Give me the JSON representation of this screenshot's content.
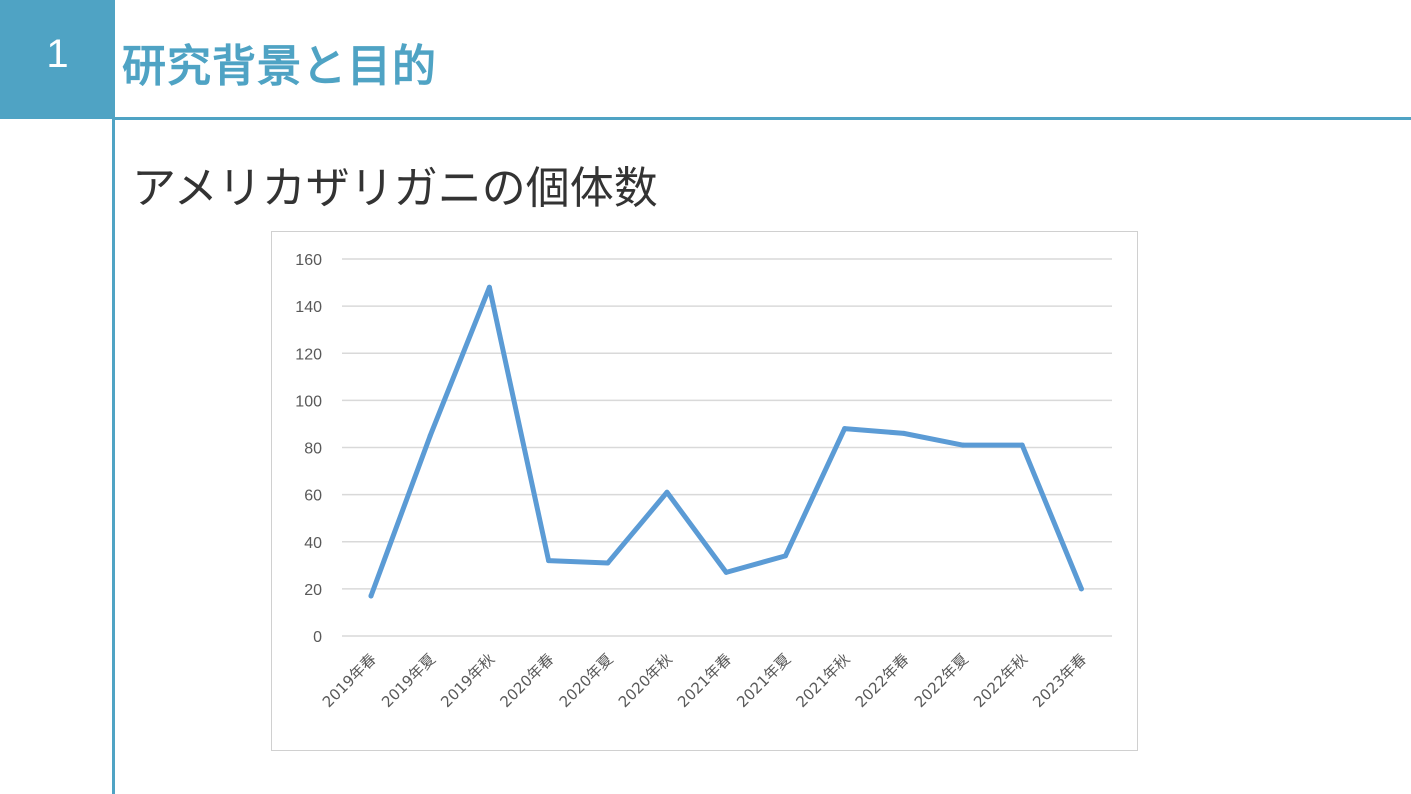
{
  "slide": {
    "number": "1",
    "title": "研究背景と目的",
    "subtitle": "アメリカザリガニの個体数"
  },
  "colors": {
    "accent": "#4fa3c4",
    "line": "#5b9bd5",
    "grid": "#d9d9d9"
  },
  "chart_data": {
    "type": "line",
    "title": "",
    "xlabel": "",
    "ylabel": "",
    "categories": [
      "2019年春",
      "2019年夏",
      "2019年秋",
      "2020年春",
      "2020年夏",
      "2020年秋",
      "2021年春",
      "2021年夏",
      "2021年秋",
      "2022年春",
      "2022年夏",
      "2022年秋",
      "2023年春"
    ],
    "series": [
      {
        "values": [
          17,
          85,
          148,
          32,
          31,
          61,
          27,
          34,
          88,
          86,
          81,
          81,
          20
        ]
      }
    ],
    "ylim": [
      0,
      160
    ],
    "yticks": [
      0,
      20,
      40,
      60,
      80,
      100,
      120,
      140,
      160
    ],
    "grid": true,
    "legend": "none"
  }
}
